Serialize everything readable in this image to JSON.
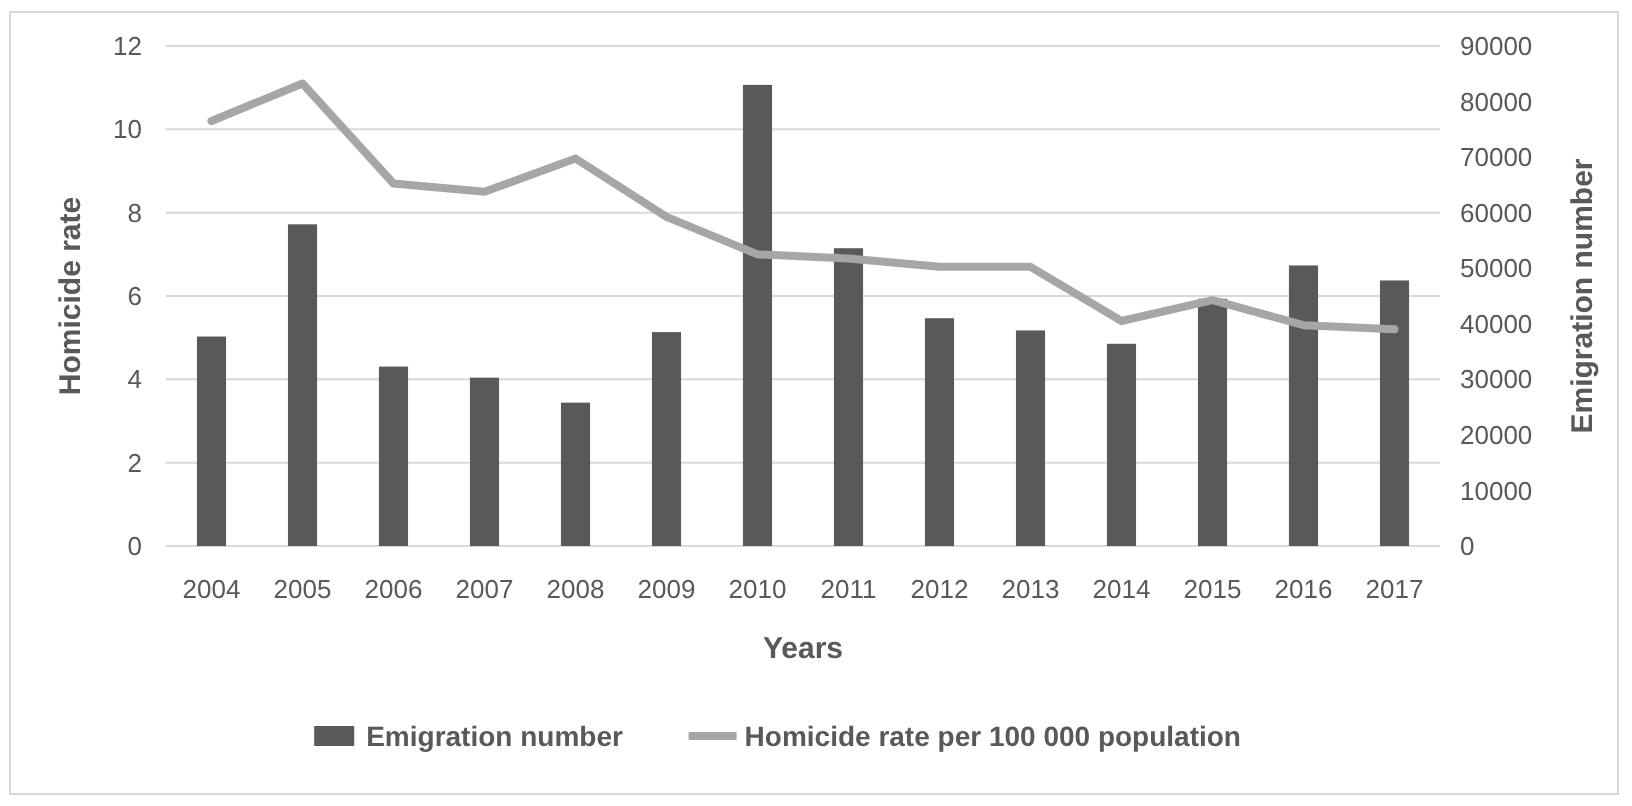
{
  "chart_data": {
    "type": "bar",
    "xlabel": "Years",
    "ylabel": "Homicide rate",
    "y2label": "Emigration number",
    "categories": [
      "2004",
      "2005",
      "2006",
      "2007",
      "2008",
      "2009",
      "2010",
      "2011",
      "2012",
      "2013",
      "2014",
      "2015",
      "2016",
      "2017"
    ],
    "series": [
      {
        "name": "Emigration number",
        "axis": "y2",
        "color": "#595959",
        "values": [
          37700,
          57900,
          32300,
          30300,
          25800,
          38500,
          83000,
          53600,
          41000,
          38800,
          36400,
          44500,
          50500,
          47800
        ]
      },
      {
        "name": "Homicide rate per 100 000 population",
        "type": "line",
        "color": "#a6a6a6",
        "values": [
          10.2,
          11.1,
          8.7,
          8.5,
          9.3,
          7.9,
          7.0,
          6.9,
          6.7,
          6.7,
          5.4,
          5.9,
          5.3,
          5.2
        ]
      }
    ],
    "ylim": [
      0,
      12
    ],
    "yticks": [
      0,
      2,
      4,
      6,
      8,
      10,
      12
    ],
    "y2lim": [
      0,
      90000
    ],
    "y2ticks": [
      0,
      10000,
      20000,
      30000,
      40000,
      50000,
      60000,
      70000,
      80000,
      90000
    ],
    "grid": "y",
    "legend": "bottom",
    "marker": "none",
    "line_style": "solid"
  }
}
